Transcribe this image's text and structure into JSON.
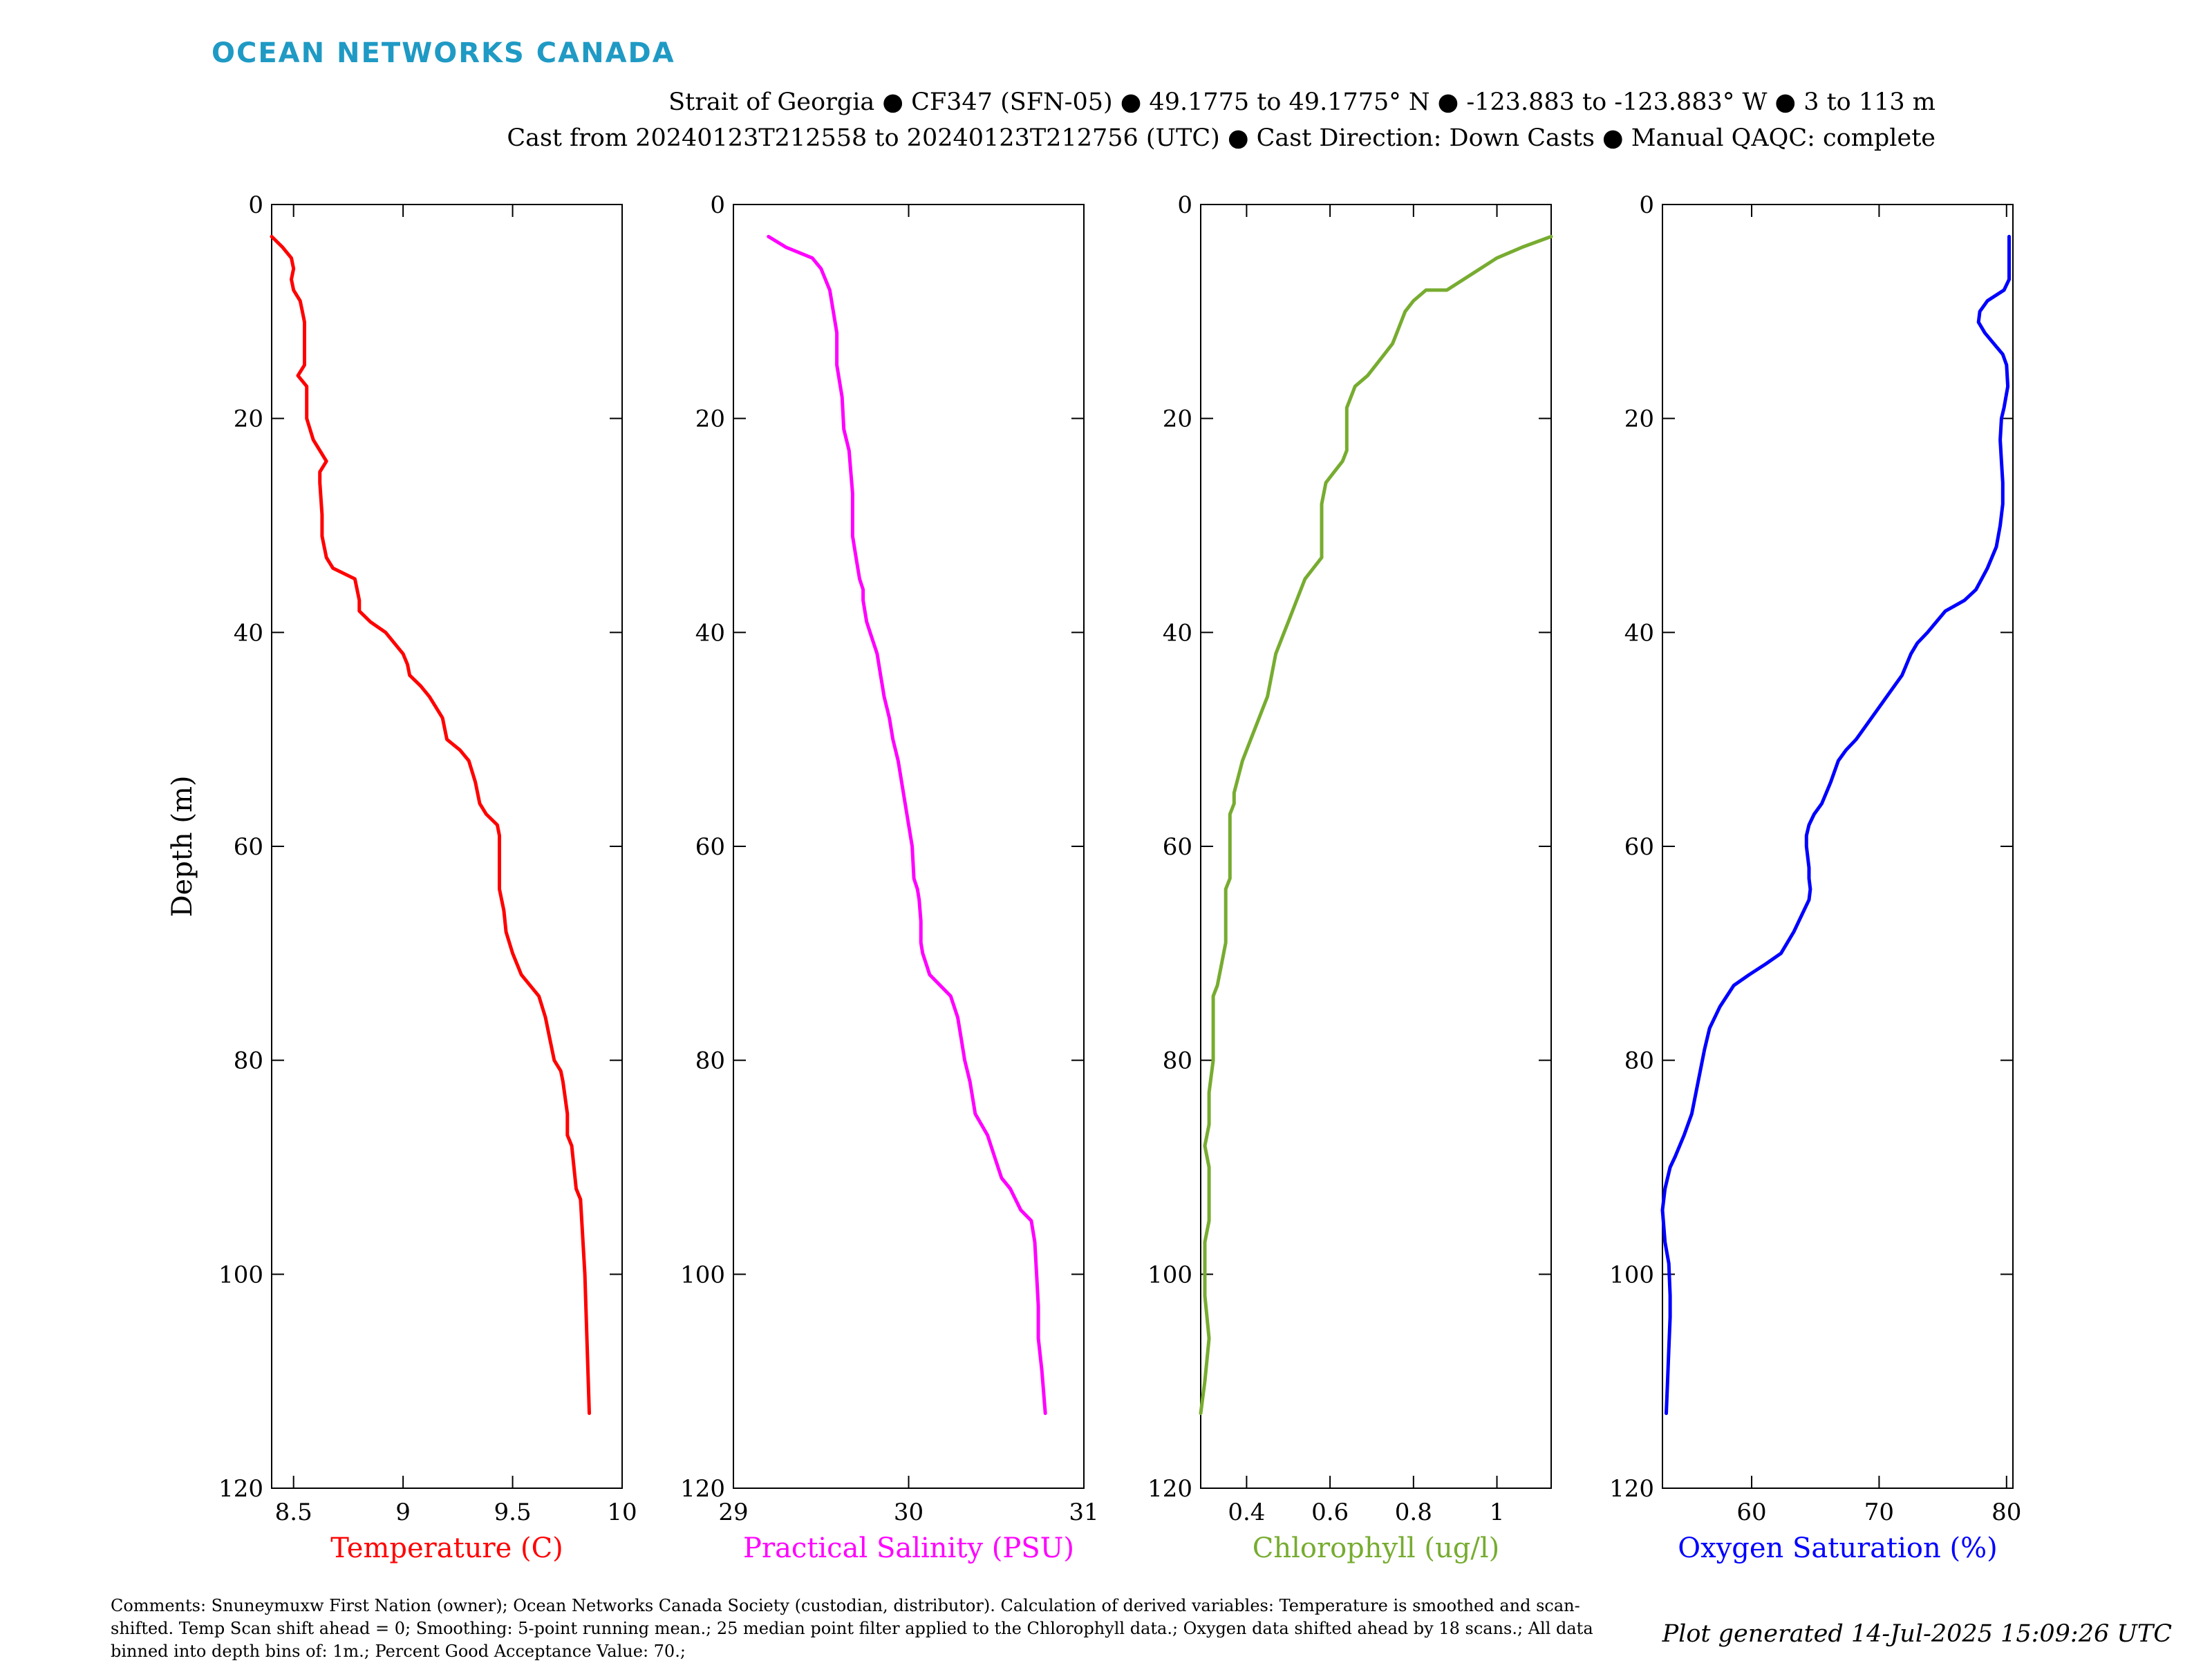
{
  "logo": "OCEAN NETWORKS CANADA",
  "header": {
    "line1": "Strait of Georgia ● CF347 (SFN-05) ● 49.1775 to 49.1775° N ● -123.883 to -123.883° W ● 3 to 113 m",
    "line2": "Cast from 20240123T212558 to 20240123T212756 (UTC) ● Cast Direction: Down Casts ● Manual QAQC: complete"
  },
  "footer": {
    "comments": "Comments: Snuneymuxw First Nation (owner); Ocean Networks Canada Society (custodian, distributor). Calculation of derived variables: Temperature is smoothed and scan-shifted. Temp Scan shift ahead = 0; Smoothing: 5-point running mean.; 25 median point filter applied to the Chlorophyll data.; Oxygen data shifted ahead by 18 scans.; All data binned into depth bins of: 1m.; Percent Good Acceptance Value: 70.;",
    "generated": "Plot generated 14-Jul-2025 15:09:26 UTC"
  },
  "chart_data": [
    {
      "type": "line",
      "xlabel": "Temperature (C)",
      "ylabel": "Depth (m)",
      "color": "#ff0000",
      "xlim": [
        8.4,
        10
      ],
      "ylim": [
        0,
        120
      ],
      "y_reversed": true,
      "xticks": [
        8.5,
        9,
        9.5,
        10
      ],
      "xtick_labels": [
        "8.5",
        "9",
        "9.5",
        "10"
      ],
      "yticks": [
        0,
        20,
        40,
        60,
        80,
        100,
        120
      ],
      "ytick_labels": [
        "0",
        "20",
        "40",
        "60",
        "80",
        "100",
        "120"
      ],
      "x": [
        8.4,
        8.45,
        8.49,
        8.5,
        8.49,
        8.5,
        8.53,
        8.54,
        8.55,
        8.55,
        8.52,
        8.56,
        8.56,
        8.59,
        8.62,
        8.65,
        8.62,
        8.62,
        8.63,
        8.63,
        8.65,
        8.68,
        8.78,
        8.8,
        8.8,
        8.85,
        8.92,
        9.0,
        9.02,
        9.03,
        9.08,
        9.12,
        9.15,
        9.18,
        9.2,
        9.26,
        9.3,
        9.33,
        9.35,
        9.38,
        9.43,
        9.44,
        9.44,
        9.44,
        9.44,
        9.46,
        9.47,
        9.5,
        9.54,
        9.58,
        9.62,
        9.65,
        9.67,
        9.69,
        9.72,
        9.73,
        9.75,
        9.75,
        9.77,
        9.78,
        9.79,
        9.81,
        9.83,
        9.85
      ],
      "y": [
        3,
        4,
        5,
        6,
        7,
        8,
        9,
        10,
        11,
        15,
        16,
        17,
        20,
        22,
        23,
        24,
        25,
        26,
        29,
        31,
        33,
        34,
        35,
        37,
        38,
        39,
        40,
        42,
        43,
        44,
        45,
        46,
        47,
        48,
        50,
        51,
        52,
        54,
        56,
        57,
        58,
        59,
        60,
        62,
        64,
        66,
        68,
        70,
        72,
        73,
        74,
        76,
        78,
        80,
        81,
        82,
        85,
        87,
        88,
        90,
        92,
        93,
        100,
        113
      ]
    },
    {
      "type": "line",
      "xlabel": "Practical Salinity (PSU)",
      "ylabel": "",
      "color": "#ff00ff",
      "xlim": [
        29,
        31
      ],
      "ylim": [
        0,
        120
      ],
      "y_reversed": true,
      "xticks": [
        29,
        30,
        31
      ],
      "xtick_labels": [
        "29",
        "30",
        "31"
      ],
      "yticks": [
        0,
        20,
        40,
        60,
        80,
        100,
        120
      ],
      "ytick_labels": [
        "0",
        "20",
        "40",
        "60",
        "80",
        "100",
        "120"
      ],
      "x": [
        29.2,
        29.3,
        29.45,
        29.5,
        29.55,
        29.57,
        29.59,
        29.59,
        29.62,
        29.63,
        29.66,
        29.67,
        29.68,
        29.68,
        29.7,
        29.72,
        29.74,
        29.74,
        29.76,
        29.78,
        29.82,
        29.84,
        29.85,
        29.86,
        29.89,
        29.91,
        29.94,
        29.97,
        30.0,
        30.02,
        30.03,
        30.05,
        30.06,
        30.07,
        30.07,
        30.08,
        30.1,
        30.12,
        30.18,
        30.24,
        30.28,
        30.3,
        30.32,
        30.35,
        30.37,
        30.38,
        30.45,
        30.49,
        30.53,
        30.58,
        30.64,
        30.7,
        30.72,
        30.73,
        30.74,
        30.74,
        30.76,
        30.78
      ],
      "y": [
        3,
        4,
        5,
        6,
        8,
        10,
        12,
        15,
        18,
        21,
        23,
        25,
        27,
        31,
        33,
        35,
        36,
        37,
        39,
        40,
        42,
        44,
        45,
        46,
        48,
        50,
        52,
        55,
        58,
        60,
        63,
        64,
        65,
        67,
        69,
        70,
        71,
        72,
        73,
        74,
        76,
        78,
        80,
        82,
        84,
        85,
        87,
        89,
        91,
        92,
        94,
        95,
        97,
        100,
        103,
        106,
        109,
        113
      ]
    },
    {
      "type": "line",
      "xlabel": "Chlorophyll (ug/l)",
      "ylabel": "",
      "color": "#77ac30",
      "xlim": [
        0.29,
        1.13
      ],
      "ylim": [
        0,
        120
      ],
      "y_reversed": true,
      "xticks": [
        0.4,
        0.6,
        0.8,
        1
      ],
      "xtick_labels": [
        "0.4",
        "0.6",
        "0.8",
        "1"
      ],
      "yticks": [
        0,
        20,
        40,
        60,
        80,
        100,
        120
      ],
      "ytick_labels": [
        "0",
        "20",
        "40",
        "60",
        "80",
        "100",
        "120"
      ],
      "x": [
        1.13,
        1.06,
        1.0,
        0.96,
        0.92,
        0.88,
        0.83,
        0.8,
        0.78,
        0.76,
        0.75,
        0.73,
        0.71,
        0.69,
        0.66,
        0.65,
        0.64,
        0.64,
        0.64,
        0.63,
        0.61,
        0.59,
        0.58,
        0.58,
        0.58,
        0.58,
        0.56,
        0.54,
        0.52,
        0.51,
        0.5,
        0.49,
        0.47,
        0.46,
        0.45,
        0.44,
        0.43,
        0.41,
        0.39,
        0.37,
        0.37,
        0.36,
        0.36,
        0.36,
        0.35,
        0.35,
        0.35,
        0.34,
        0.33,
        0.32,
        0.32,
        0.32,
        0.31,
        0.31,
        0.3,
        0.31,
        0.31,
        0.31,
        0.3,
        0.3,
        0.3,
        0.31,
        0.3,
        0.29
      ],
      "y": [
        3,
        4,
        5,
        6,
        7,
        8,
        8,
        9,
        10,
        12,
        13,
        14,
        15,
        16,
        17,
        18,
        19,
        20,
        23,
        24,
        25,
        26,
        28,
        30,
        32,
        33,
        34,
        35,
        37,
        38,
        39,
        40,
        42,
        44,
        46,
        47,
        48,
        50,
        52,
        55,
        56,
        57,
        59,
        63,
        64,
        66,
        69,
        71,
        73,
        74,
        77,
        80,
        83,
        86,
        88,
        90,
        93,
        95,
        97,
        99,
        102,
        106,
        110,
        113
      ]
    },
    {
      "type": "line",
      "xlabel": "Oxygen Saturation (%)",
      "ylabel": "",
      "color": "#0000ff",
      "xlim": [
        53,
        80.5
      ],
      "ylim": [
        0,
        120
      ],
      "y_reversed": true,
      "xticks": [
        60,
        70,
        80
      ],
      "xtick_labels": [
        "60",
        "70",
        "80"
      ],
      "yticks": [
        0,
        20,
        40,
        60,
        80,
        100,
        120
      ],
      "ytick_labels": [
        "0",
        "20",
        "40",
        "60",
        "80",
        "100",
        "120"
      ],
      "x": [
        80.2,
        80.2,
        80.2,
        79.8,
        78.5,
        77.9,
        77.8,
        78.3,
        79.0,
        79.7,
        80.0,
        80.1,
        79.8,
        79.6,
        79.5,
        79.6,
        79.7,
        79.7,
        79.5,
        79.2,
        78.5,
        77.6,
        76.7,
        75.2,
        73.8,
        73.0,
        72.5,
        71.8,
        70.6,
        69.4,
        68.2,
        67.4,
        66.8,
        66.2,
        65.5,
        64.9,
        64.5,
        64.3,
        64.3,
        64.5,
        64.5,
        64.6,
        64.5,
        64.1,
        63.3,
        62.3,
        61.1,
        59.8,
        58.6,
        57.5,
        56.7,
        56.3,
        55.8,
        55.3,
        54.7,
        54.0,
        53.6,
        53.2,
        53.0,
        53.2,
        53.5,
        53.6,
        53.6,
        53.5,
        53.4,
        53.3
      ],
      "y": [
        3,
        5,
        7,
        8,
        9,
        10,
        11,
        12,
        13,
        14,
        15,
        17,
        19,
        20,
        22,
        24,
        26,
        28,
        30,
        32,
        34,
        36,
        37,
        38,
        40,
        41,
        42,
        44,
        46,
        48,
        50,
        51,
        52,
        54,
        56,
        57,
        58,
        59,
        60,
        62,
        63,
        64,
        65,
        66,
        68,
        70,
        71,
        72,
        73,
        75,
        77,
        79,
        82,
        85,
        87,
        89,
        90,
        92,
        94,
        97,
        99,
        102,
        104,
        107,
        110,
        113
      ]
    }
  ]
}
